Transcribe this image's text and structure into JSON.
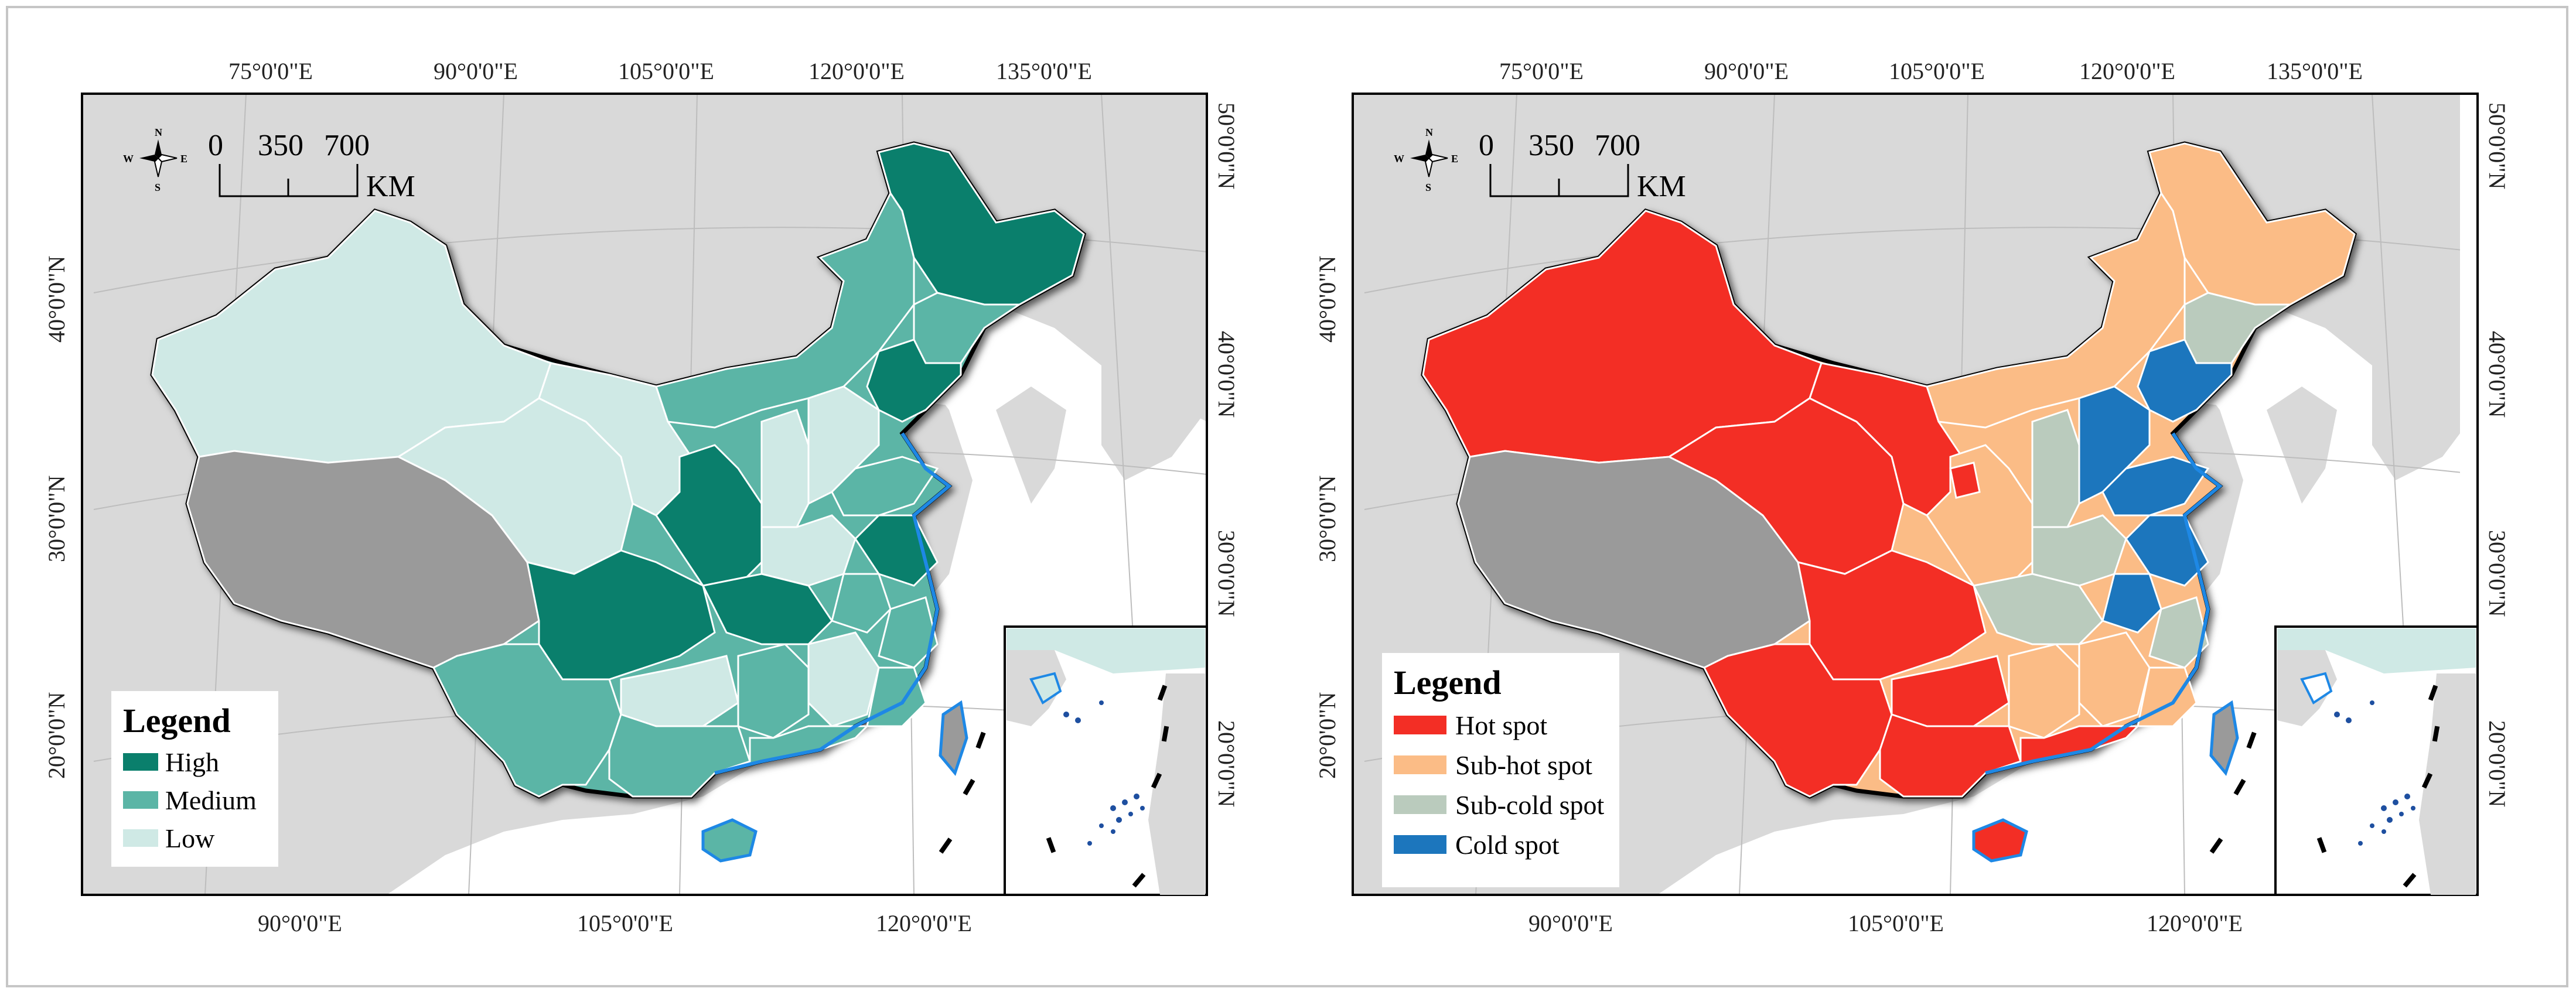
{
  "graticule": {
    "top_labels": [
      "75°0'0\"E",
      "90°0'0\"E",
      "105°0'0\"E",
      "120°0'0\"E",
      "135°0'0\"E"
    ],
    "bottom_labels": [
      "90°0'0\"E",
      "105°0'0\"E",
      "120°0'0\"E"
    ],
    "left_labels": [
      "40°0'0\"N",
      "30°0'0\"N",
      "20°0'0\"N"
    ],
    "right_labels": [
      "50°0'0\"N",
      "40°0'0\"N",
      "30°0'0\"N",
      "20°0'0\"N"
    ]
  },
  "scale_bar": {
    "ticks": [
      "0",
      "350",
      "700"
    ],
    "unit": "KM"
  },
  "compass": {
    "n": "N",
    "s": "S",
    "e": "E",
    "w": "W"
  },
  "left_map": {
    "legend_title": "Legend",
    "legend_items": [
      {
        "label": "High",
        "color": "#0a7f6c"
      },
      {
        "label": "Medium",
        "color": "#5bb5a6"
      },
      {
        "label": "Low",
        "color": "#cfe9e5"
      }
    ]
  },
  "right_map": {
    "legend_title": "Legend",
    "legend_items": [
      {
        "label": "Hot spot",
        "color": "#f32e25"
      },
      {
        "label": "Sub-hot spot",
        "color": "#fbbc86"
      },
      {
        "label": "Sub-cold spot",
        "color": "#bacbbd"
      },
      {
        "label": "Cold spot",
        "color": "#1c76bd"
      }
    ]
  },
  "colors": {
    "background_land": "#d8d8d8",
    "sea": "#ffffff",
    "no_data": "#9a9a9a",
    "border": "#000000"
  }
}
